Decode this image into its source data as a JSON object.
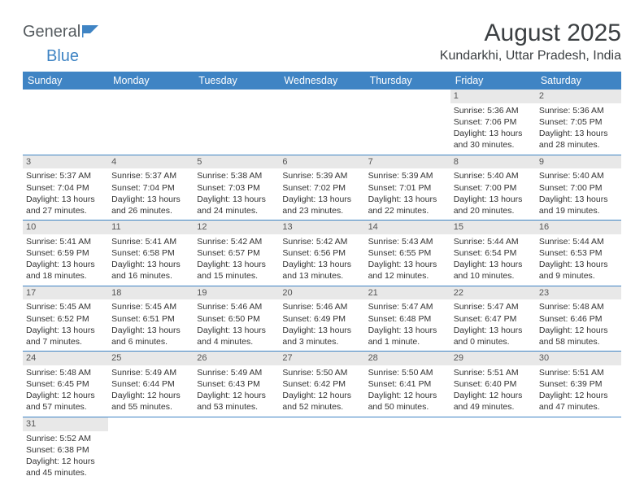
{
  "logo": {
    "textA": "General",
    "textB": "Blue"
  },
  "title": "August 2025",
  "location": "Kundarkhi, Uttar Pradesh, India",
  "colors": {
    "headerBg": "#3f84c4",
    "headerText": "#ffffff",
    "dayNumBg": "#e8e8e8",
    "rowDivider": "#3f84c4",
    "pageBg": "#ffffff"
  },
  "weekdays": [
    "Sunday",
    "Monday",
    "Tuesday",
    "Wednesday",
    "Thursday",
    "Friday",
    "Saturday"
  ],
  "weeks": [
    [
      null,
      null,
      null,
      null,
      null,
      {
        "num": "1",
        "sunrise": "Sunrise: 5:36 AM",
        "sunset": "Sunset: 7:06 PM",
        "day1": "Daylight: 13 hours",
        "day2": "and 30 minutes."
      },
      {
        "num": "2",
        "sunrise": "Sunrise: 5:36 AM",
        "sunset": "Sunset: 7:05 PM",
        "day1": "Daylight: 13 hours",
        "day2": "and 28 minutes."
      }
    ],
    [
      {
        "num": "3",
        "sunrise": "Sunrise: 5:37 AM",
        "sunset": "Sunset: 7:04 PM",
        "day1": "Daylight: 13 hours",
        "day2": "and 27 minutes."
      },
      {
        "num": "4",
        "sunrise": "Sunrise: 5:37 AM",
        "sunset": "Sunset: 7:04 PM",
        "day1": "Daylight: 13 hours",
        "day2": "and 26 minutes."
      },
      {
        "num": "5",
        "sunrise": "Sunrise: 5:38 AM",
        "sunset": "Sunset: 7:03 PM",
        "day1": "Daylight: 13 hours",
        "day2": "and 24 minutes."
      },
      {
        "num": "6",
        "sunrise": "Sunrise: 5:39 AM",
        "sunset": "Sunset: 7:02 PM",
        "day1": "Daylight: 13 hours",
        "day2": "and 23 minutes."
      },
      {
        "num": "7",
        "sunrise": "Sunrise: 5:39 AM",
        "sunset": "Sunset: 7:01 PM",
        "day1": "Daylight: 13 hours",
        "day2": "and 22 minutes."
      },
      {
        "num": "8",
        "sunrise": "Sunrise: 5:40 AM",
        "sunset": "Sunset: 7:00 PM",
        "day1": "Daylight: 13 hours",
        "day2": "and 20 minutes."
      },
      {
        "num": "9",
        "sunrise": "Sunrise: 5:40 AM",
        "sunset": "Sunset: 7:00 PM",
        "day1": "Daylight: 13 hours",
        "day2": "and 19 minutes."
      }
    ],
    [
      {
        "num": "10",
        "sunrise": "Sunrise: 5:41 AM",
        "sunset": "Sunset: 6:59 PM",
        "day1": "Daylight: 13 hours",
        "day2": "and 18 minutes."
      },
      {
        "num": "11",
        "sunrise": "Sunrise: 5:41 AM",
        "sunset": "Sunset: 6:58 PM",
        "day1": "Daylight: 13 hours",
        "day2": "and 16 minutes."
      },
      {
        "num": "12",
        "sunrise": "Sunrise: 5:42 AM",
        "sunset": "Sunset: 6:57 PM",
        "day1": "Daylight: 13 hours",
        "day2": "and 15 minutes."
      },
      {
        "num": "13",
        "sunrise": "Sunrise: 5:42 AM",
        "sunset": "Sunset: 6:56 PM",
        "day1": "Daylight: 13 hours",
        "day2": "and 13 minutes."
      },
      {
        "num": "14",
        "sunrise": "Sunrise: 5:43 AM",
        "sunset": "Sunset: 6:55 PM",
        "day1": "Daylight: 13 hours",
        "day2": "and 12 minutes."
      },
      {
        "num": "15",
        "sunrise": "Sunrise: 5:44 AM",
        "sunset": "Sunset: 6:54 PM",
        "day1": "Daylight: 13 hours",
        "day2": "and 10 minutes."
      },
      {
        "num": "16",
        "sunrise": "Sunrise: 5:44 AM",
        "sunset": "Sunset: 6:53 PM",
        "day1": "Daylight: 13 hours",
        "day2": "and 9 minutes."
      }
    ],
    [
      {
        "num": "17",
        "sunrise": "Sunrise: 5:45 AM",
        "sunset": "Sunset: 6:52 PM",
        "day1": "Daylight: 13 hours",
        "day2": "and 7 minutes."
      },
      {
        "num": "18",
        "sunrise": "Sunrise: 5:45 AM",
        "sunset": "Sunset: 6:51 PM",
        "day1": "Daylight: 13 hours",
        "day2": "and 6 minutes."
      },
      {
        "num": "19",
        "sunrise": "Sunrise: 5:46 AM",
        "sunset": "Sunset: 6:50 PM",
        "day1": "Daylight: 13 hours",
        "day2": "and 4 minutes."
      },
      {
        "num": "20",
        "sunrise": "Sunrise: 5:46 AM",
        "sunset": "Sunset: 6:49 PM",
        "day1": "Daylight: 13 hours",
        "day2": "and 3 minutes."
      },
      {
        "num": "21",
        "sunrise": "Sunrise: 5:47 AM",
        "sunset": "Sunset: 6:48 PM",
        "day1": "Daylight: 13 hours",
        "day2": "and 1 minute."
      },
      {
        "num": "22",
        "sunrise": "Sunrise: 5:47 AM",
        "sunset": "Sunset: 6:47 PM",
        "day1": "Daylight: 13 hours",
        "day2": "and 0 minutes."
      },
      {
        "num": "23",
        "sunrise": "Sunrise: 5:48 AM",
        "sunset": "Sunset: 6:46 PM",
        "day1": "Daylight: 12 hours",
        "day2": "and 58 minutes."
      }
    ],
    [
      {
        "num": "24",
        "sunrise": "Sunrise: 5:48 AM",
        "sunset": "Sunset: 6:45 PM",
        "day1": "Daylight: 12 hours",
        "day2": "and 57 minutes."
      },
      {
        "num": "25",
        "sunrise": "Sunrise: 5:49 AM",
        "sunset": "Sunset: 6:44 PM",
        "day1": "Daylight: 12 hours",
        "day2": "and 55 minutes."
      },
      {
        "num": "26",
        "sunrise": "Sunrise: 5:49 AM",
        "sunset": "Sunset: 6:43 PM",
        "day1": "Daylight: 12 hours",
        "day2": "and 53 minutes."
      },
      {
        "num": "27",
        "sunrise": "Sunrise: 5:50 AM",
        "sunset": "Sunset: 6:42 PM",
        "day1": "Daylight: 12 hours",
        "day2": "and 52 minutes."
      },
      {
        "num": "28",
        "sunrise": "Sunrise: 5:50 AM",
        "sunset": "Sunset: 6:41 PM",
        "day1": "Daylight: 12 hours",
        "day2": "and 50 minutes."
      },
      {
        "num": "29",
        "sunrise": "Sunrise: 5:51 AM",
        "sunset": "Sunset: 6:40 PM",
        "day1": "Daylight: 12 hours",
        "day2": "and 49 minutes."
      },
      {
        "num": "30",
        "sunrise": "Sunrise: 5:51 AM",
        "sunset": "Sunset: 6:39 PM",
        "day1": "Daylight: 12 hours",
        "day2": "and 47 minutes."
      }
    ],
    [
      {
        "num": "31",
        "sunrise": "Sunrise: 5:52 AM",
        "sunset": "Sunset: 6:38 PM",
        "day1": "Daylight: 12 hours",
        "day2": "and 45 minutes."
      },
      null,
      null,
      null,
      null,
      null,
      null
    ]
  ]
}
